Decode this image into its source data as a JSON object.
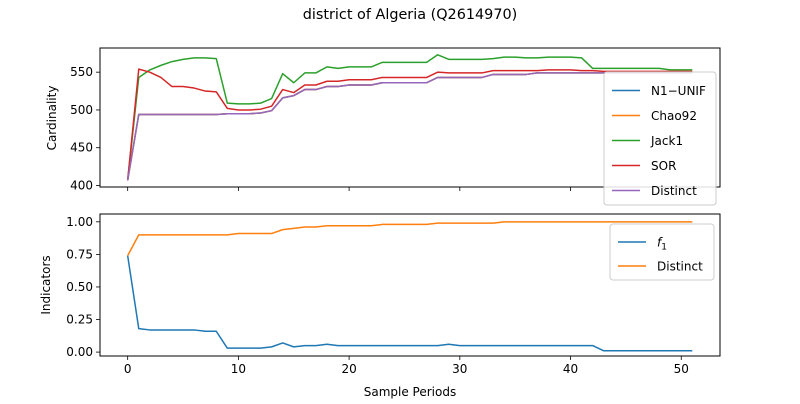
{
  "figure": {
    "title": "district of Algeria (Q2614970)",
    "xlabel": "Sample Periods"
  },
  "chart_data": [
    {
      "type": "line",
      "ylabel": "Cardinality",
      "xlim": [
        -2.5,
        53.5
      ],
      "ylim": [
        398,
        582
      ],
      "xticks": [
        0,
        10,
        20,
        30,
        40,
        50
      ],
      "yticks": [
        400,
        450,
        500,
        550
      ],
      "ytick_labels": [
        "400",
        "450",
        "500",
        "550"
      ],
      "grid": false,
      "legend_position": "right",
      "x": [
        0,
        1,
        2,
        3,
        4,
        5,
        6,
        7,
        8,
        9,
        10,
        11,
        12,
        13,
        14,
        15,
        16,
        17,
        18,
        19,
        20,
        21,
        22,
        23,
        24,
        25,
        26,
        27,
        28,
        29,
        30,
        31,
        32,
        33,
        34,
        35,
        36,
        37,
        38,
        39,
        40,
        41,
        42,
        43,
        44,
        45,
        46,
        47,
        48,
        49,
        50,
        51
      ],
      "series": [
        {
          "name": "N1−UNIF",
          "color": "#1f77b4",
          "values": [
            407,
            494,
            494,
            494,
            494,
            494,
            494,
            494,
            494,
            495,
            495,
            495,
            496,
            499,
            516,
            519,
            527,
            527,
            531,
            531,
            533,
            533,
            533,
            536,
            536,
            536,
            536,
            536,
            543,
            543,
            543,
            543,
            543,
            547,
            547,
            547,
            547,
            549,
            549,
            549,
            549,
            549,
            549,
            549,
            549,
            549,
            549,
            549,
            549,
            549,
            549,
            549
          ]
        },
        {
          "name": "Chao92",
          "color": "#ff7f0e",
          "values": [
            407,
            494,
            494,
            494,
            494,
            494,
            494,
            494,
            494,
            495,
            495,
            495,
            496,
            499,
            516,
            519,
            527,
            527,
            531,
            531,
            533,
            533,
            533,
            536,
            536,
            536,
            536,
            536,
            543,
            543,
            543,
            543,
            543,
            547,
            547,
            547,
            547,
            549,
            549,
            549,
            549,
            549,
            549,
            549,
            549,
            549,
            549,
            549,
            549,
            549,
            549,
            549
          ]
        },
        {
          "name": "Jack1",
          "color": "#2ca02c",
          "values": [
            407,
            543,
            553,
            559,
            564,
            567,
            569,
            569,
            568,
            509,
            508,
            508,
            509,
            515,
            548,
            536,
            549,
            549,
            557,
            555,
            557,
            557,
            557,
            563,
            563,
            563,
            563,
            563,
            573,
            567,
            567,
            567,
            567,
            568,
            570,
            570,
            569,
            569,
            570,
            570,
            570,
            569,
            555,
            555,
            555,
            555,
            555,
            555,
            555,
            553,
            553,
            553
          ]
        },
        {
          "name": "SOR",
          "color": "#d62728",
          "values": [
            407,
            554,
            550,
            543,
            531,
            531,
            529,
            525,
            524,
            502,
            500,
            500,
            501,
            505,
            527,
            523,
            533,
            533,
            538,
            538,
            540,
            540,
            540,
            543,
            543,
            543,
            543,
            543,
            550,
            549,
            549,
            549,
            549,
            552,
            552,
            552,
            552,
            552,
            553,
            553,
            553,
            552,
            552,
            551,
            551,
            551,
            551,
            551,
            551,
            551,
            551,
            551
          ]
        },
        {
          "name": "Distinct",
          "color": "#9467bd",
          "values": [
            407,
            494,
            494,
            494,
            494,
            494,
            494,
            494,
            494,
            495,
            495,
            495,
            496,
            499,
            516,
            519,
            527,
            527,
            531,
            531,
            533,
            533,
            533,
            536,
            536,
            536,
            536,
            536,
            543,
            543,
            543,
            543,
            543,
            547,
            547,
            547,
            547,
            549,
            549,
            549,
            549,
            549,
            549,
            549,
            549,
            549,
            549,
            549,
            549,
            549,
            549,
            549
          ]
        }
      ]
    },
    {
      "type": "line",
      "ylabel": "Indicators",
      "xlim": [
        -2.5,
        53.5
      ],
      "ylim": [
        -0.03,
        1.06
      ],
      "xticks": [
        0,
        10,
        20,
        30,
        40,
        50
      ],
      "xtick_labels": [
        "0",
        "10",
        "20",
        "30",
        "40",
        "50"
      ],
      "yticks": [
        0.0,
        0.25,
        0.5,
        0.75,
        1.0
      ],
      "ytick_labels": [
        "0.00",
        "0.25",
        "0.50",
        "0.75",
        "1.00"
      ],
      "grid": false,
      "legend_position": "top-right",
      "x": [
        0,
        1,
        2,
        3,
        4,
        5,
        6,
        7,
        8,
        9,
        10,
        11,
        12,
        13,
        14,
        15,
        16,
        17,
        18,
        19,
        20,
        21,
        22,
        23,
        24,
        25,
        26,
        27,
        28,
        29,
        30,
        31,
        32,
        33,
        34,
        35,
        36,
        37,
        38,
        39,
        40,
        41,
        42,
        43,
        44,
        45,
        46,
        47,
        48,
        49,
        50,
        51
      ],
      "series": [
        {
          "name": "f₁",
          "label_base": "f",
          "label_sub": "1",
          "color": "#1f77b4",
          "values": [
            0.74,
            0.18,
            0.17,
            0.17,
            0.17,
            0.17,
            0.17,
            0.16,
            0.16,
            0.03,
            0.03,
            0.03,
            0.03,
            0.04,
            0.07,
            0.04,
            0.05,
            0.05,
            0.06,
            0.05,
            0.05,
            0.05,
            0.05,
            0.05,
            0.05,
            0.05,
            0.05,
            0.05,
            0.05,
            0.06,
            0.05,
            0.05,
            0.05,
            0.05,
            0.05,
            0.05,
            0.05,
            0.05,
            0.05,
            0.05,
            0.05,
            0.05,
            0.05,
            0.01,
            0.01,
            0.01,
            0.01,
            0.01,
            0.01,
            0.01,
            0.01,
            0.01
          ]
        },
        {
          "name": "Distinct",
          "color": "#ff7f0e",
          "values": [
            0.74,
            0.9,
            0.9,
            0.9,
            0.9,
            0.9,
            0.9,
            0.9,
            0.9,
            0.9,
            0.91,
            0.91,
            0.91,
            0.91,
            0.94,
            0.95,
            0.96,
            0.96,
            0.97,
            0.97,
            0.97,
            0.97,
            0.97,
            0.98,
            0.98,
            0.98,
            0.98,
            0.98,
            0.99,
            0.99,
            0.99,
            0.99,
            0.99,
            0.99,
            1.0,
            1.0,
            1.0,
            1.0,
            1.0,
            1.0,
            1.0,
            1.0,
            1.0,
            1.0,
            1.0,
            1.0,
            1.0,
            1.0,
            1.0,
            1.0,
            1.0,
            1.0
          ]
        }
      ]
    }
  ]
}
